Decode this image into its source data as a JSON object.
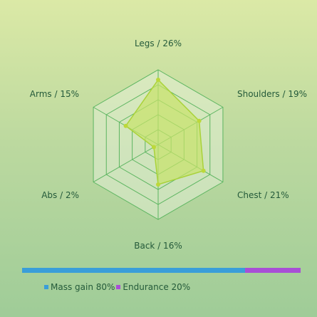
{
  "chart_data": {
    "type": "radar",
    "categories": [
      "Legs",
      "Shoulders",
      "Chest",
      "Back",
      "Abs",
      "Arms"
    ],
    "values": [
      26,
      19,
      21,
      16,
      2,
      15
    ],
    "labels": [
      "Legs / 26%",
      "Shoulders / 19%",
      "Chest / 21%",
      "Back / 16%",
      "Abs / 2%",
      "Arms / 15%"
    ],
    "rmax": 30,
    "grid_levels": 5,
    "colors": {
      "fill": "#c8e36a",
      "stroke": "#a9d23a",
      "grid": "#5cb560"
    }
  },
  "stacked_bar": {
    "segments": [
      {
        "label": "Mass gain 80%",
        "value": 80,
        "color": "#3a9ed9"
      },
      {
        "label": "Endurance 20%",
        "value": 20,
        "color": "#a84fd6"
      }
    ]
  }
}
